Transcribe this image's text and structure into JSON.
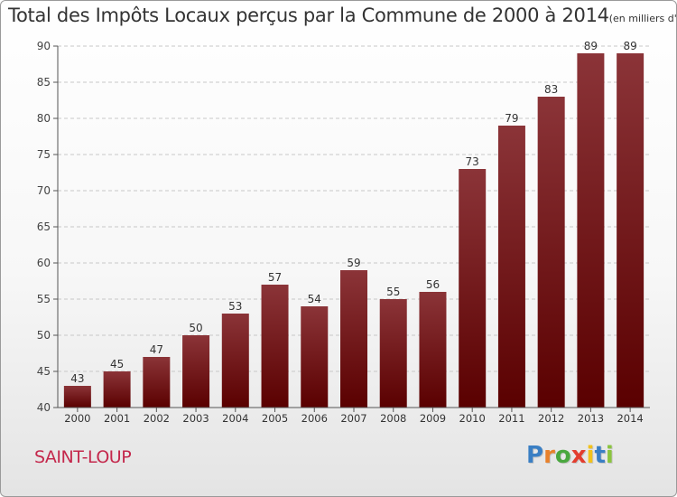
{
  "title": "Total des Impôts Locaux perçus par la Commune de 2000 à 2014",
  "unit": "(en milliers d'€)",
  "commune": "SAINT-LOUP",
  "brand": "Proxiti",
  "colors": {
    "bar_top": "#8b3438",
    "bar_bottom": "#5a0000",
    "commune_text": "#c4284c",
    "axis": "#555555",
    "grid": "#c8c8c8"
  },
  "chart_data": {
    "type": "bar",
    "categories": [
      "2000",
      "2001",
      "2002",
      "2003",
      "2004",
      "2005",
      "2006",
      "2007",
      "2008",
      "2009",
      "2010",
      "2011",
      "2012",
      "2013",
      "2014"
    ],
    "values": [
      43,
      45,
      47,
      50,
      53,
      57,
      54,
      59,
      55,
      56,
      73,
      79,
      83,
      89,
      89
    ],
    "title": "Total des Impôts Locaux perçus par la Commune de 2000 à 2014",
    "subtitle": "(en milliers d'€)",
    "xlabel": "",
    "ylabel": "",
    "ylim": [
      40,
      90
    ],
    "yticks": [
      40,
      45,
      50,
      55,
      60,
      65,
      70,
      75,
      80,
      85,
      90
    ],
    "grid": true,
    "data_labels": true
  }
}
